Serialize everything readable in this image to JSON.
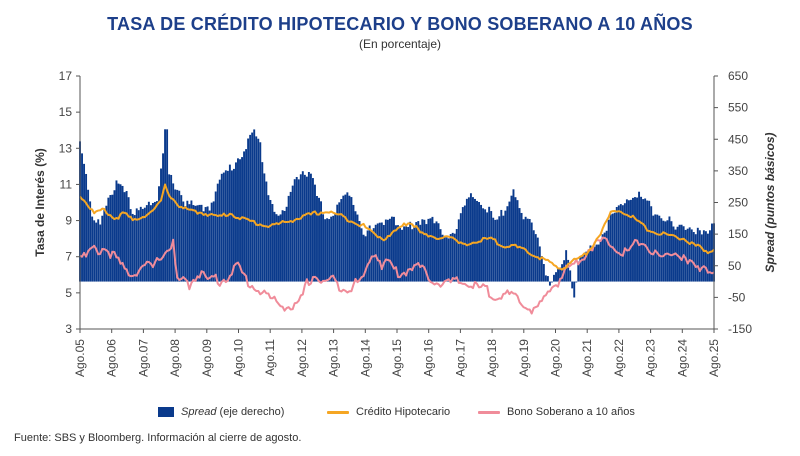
{
  "title": "TASA DE CRÉDITO HIPOTECARIO Y BONO SOBERANO A 10 AÑOS",
  "subtitle": "(En porcentaje)",
  "legend": {
    "spread_name": "Spread",
    "spread_suffix": " (eje derecho)",
    "credit": "Crédito Hipotecario",
    "bond": "Bono Soberano a 10 años"
  },
  "source": "Fuente: SBS y Bloomberg. Información al cierre de agosto.",
  "colors": {
    "spread": "#0a3a8c",
    "credit": "#f5a623",
    "bond": "#f08c9a",
    "axis": "#555555"
  },
  "chart_data": {
    "type": "bar+line",
    "ylabel_left": "Tasa de Interés (%)",
    "ylabel_right": "Spread (puntos básicos)",
    "ylim_left": [
      3,
      17
    ],
    "yticks_left": [
      "3",
      "5",
      "7",
      "9",
      "11",
      "13",
      "15",
      "17"
    ],
    "ylim_right": [
      -150,
      650
    ],
    "yticks_right": [
      "-150",
      "-50",
      "50",
      "150",
      "250",
      "350",
      "450",
      "550",
      "650"
    ],
    "x_categories": [
      "Ago.05",
      "Ago.06",
      "Ago.07",
      "Ago.08",
      "Ago.09",
      "Ago.10",
      "Ago.11",
      "Ago.12",
      "Ago.13",
      "Ago.14",
      "Ago.15",
      "Ago.16",
      "Ago.17",
      "Ago.18",
      "Ago.19",
      "Ago.20",
      "Ago.21",
      "Ago.22",
      "Ago.23",
      "Ago.24",
      "Ago.25"
    ],
    "series": [
      {
        "name": "Spread",
        "axis": "right",
        "type": "bar",
        "anchors": [
          [
            0,
            440
          ],
          [
            3,
            350
          ],
          [
            6,
            210
          ],
          [
            10,
            180
          ],
          [
            14,
            250
          ],
          [
            18,
            320
          ],
          [
            22,
            300
          ],
          [
            26,
            200
          ],
          [
            30,
            230
          ],
          [
            34,
            260
          ],
          [
            38,
            250
          ],
          [
            41,
            390
          ],
          [
            42,
            470
          ],
          [
            43,
            480
          ],
          [
            44,
            330
          ],
          [
            48,
            300
          ],
          [
            52,
            250
          ],
          [
            58,
            230
          ],
          [
            64,
            240
          ],
          [
            70,
            330
          ],
          [
            76,
            370
          ],
          [
            82,
            430
          ],
          [
            86,
            470
          ],
          [
            89,
            430
          ],
          [
            93,
            280
          ],
          [
            98,
            200
          ],
          [
            102,
            230
          ],
          [
            106,
            330
          ],
          [
            110,
            350
          ],
          [
            114,
            330
          ],
          [
            118,
            250
          ],
          [
            122,
            200
          ],
          [
            126,
            220
          ],
          [
            130,
            270
          ],
          [
            135,
            260
          ],
          [
            140,
            160
          ],
          [
            144,
            160
          ],
          [
            150,
            190
          ],
          [
            154,
            220
          ],
          [
            158,
            160
          ],
          [
            162,
            170
          ],
          [
            166,
            190
          ],
          [
            170,
            200
          ],
          [
            174,
            190
          ],
          [
            178,
            160
          ],
          [
            182,
            150
          ],
          [
            186,
            170
          ],
          [
            190,
            240
          ],
          [
            194,
            270
          ],
          [
            198,
            250
          ],
          [
            202,
            220
          ],
          [
            206,
            180
          ],
          [
            210,
            240
          ],
          [
            214,
            300
          ],
          [
            218,
            200
          ],
          [
            222,
            180
          ],
          [
            226,
            150
          ],
          [
            229,
            60
          ],
          [
            232,
            -20
          ],
          [
            235,
            20
          ],
          [
            238,
            50
          ],
          [
            240,
            100
          ],
          [
            242,
            40
          ],
          [
            244,
            -50
          ],
          [
            246,
            60
          ],
          [
            250,
            90
          ],
          [
            254,
            120
          ],
          [
            258,
            150
          ],
          [
            262,
            200
          ],
          [
            266,
            230
          ],
          [
            270,
            270
          ],
          [
            274,
            280
          ],
          [
            278,
            260
          ],
          [
            282,
            230
          ],
          [
            286,
            210
          ],
          [
            290,
            200
          ],
          [
            294,
            160
          ],
          [
            298,
            180
          ],
          [
            302,
            170
          ],
          [
            306,
            150
          ],
          [
            310,
            140
          ],
          [
            312,
            180
          ],
          [
            313,
            200
          ]
        ]
      },
      {
        "name": "Crédito Hipotecario",
        "axis": "left",
        "type": "line",
        "anchors": [
          [
            0,
            10.4
          ],
          [
            3,
            10.0
          ],
          [
            7,
            9.4
          ],
          [
            12,
            9.6
          ],
          [
            17,
            9.1
          ],
          [
            22,
            9.4
          ],
          [
            26,
            9.0
          ],
          [
            30,
            9.2
          ],
          [
            34,
            9.4
          ],
          [
            37,
            9.6
          ],
          [
            40,
            10.1
          ],
          [
            42,
            10.9
          ],
          [
            45,
            10.3
          ],
          [
            50,
            9.7
          ],
          [
            56,
            9.5
          ],
          [
            62,
            9.4
          ],
          [
            68,
            9.2
          ],
          [
            74,
            9.4
          ],
          [
            80,
            9.1
          ],
          [
            86,
            8.9
          ],
          [
            92,
            8.7
          ],
          [
            98,
            8.8
          ],
          [
            104,
            9.0
          ],
          [
            110,
            9.2
          ],
          [
            116,
            9.4
          ],
          [
            122,
            9.5
          ],
          [
            128,
            9.3
          ],
          [
            134,
            9.0
          ],
          [
            140,
            8.7
          ],
          [
            146,
            8.2
          ],
          [
            150,
            8.0
          ],
          [
            154,
            8.3
          ],
          [
            158,
            8.6
          ],
          [
            162,
            8.9
          ],
          [
            166,
            8.7
          ],
          [
            170,
            8.2
          ],
          [
            174,
            8.0
          ],
          [
            178,
            8.1
          ],
          [
            182,
            8.2
          ],
          [
            186,
            7.8
          ],
          [
            190,
            7.6
          ],
          [
            194,
            7.8
          ],
          [
            198,
            7.9
          ],
          [
            202,
            8.0
          ],
          [
            206,
            7.8
          ],
          [
            210,
            7.6
          ],
          [
            214,
            7.6
          ],
          [
            218,
            7.4
          ],
          [
            222,
            7.2
          ],
          [
            226,
            7.0
          ],
          [
            230,
            6.8
          ],
          [
            234,
            6.5
          ],
          [
            238,
            6.3
          ],
          [
            242,
            6.7
          ],
          [
            246,
            6.9
          ],
          [
            250,
            7.2
          ],
          [
            254,
            7.8
          ],
          [
            258,
            8.5
          ],
          [
            262,
            9.4
          ],
          [
            266,
            9.6
          ],
          [
            270,
            9.4
          ],
          [
            274,
            9.1
          ],
          [
            278,
            8.7
          ],
          [
            282,
            8.4
          ],
          [
            286,
            8.3
          ],
          [
            290,
            8.2
          ],
          [
            294,
            8.1
          ],
          [
            298,
            8.0
          ],
          [
            302,
            7.7
          ],
          [
            306,
            7.5
          ],
          [
            308,
            7.3
          ],
          [
            312,
            7.3
          ],
          [
            313,
            7.4
          ]
        ]
      },
      {
        "name": "Bono Soberano a 10 años",
        "axis": "left",
        "type": "line",
        "anchors": [
          [
            0,
            7.2
          ],
          [
            3,
            7.0
          ],
          [
            6,
            7.4
          ],
          [
            9,
            7.3
          ],
          [
            12,
            7.5
          ],
          [
            15,
            7.2
          ],
          [
            18,
            6.9
          ],
          [
            21,
            6.4
          ],
          [
            24,
            6.1
          ],
          [
            27,
            6.1
          ],
          [
            30,
            6.4
          ],
          [
            33,
            6.5
          ],
          [
            36,
            6.4
          ],
          [
            38,
            6.7
          ],
          [
            40,
            7.1
          ],
          [
            42,
            7.2
          ],
          [
            44,
            7.5
          ],
          [
            46,
            7.8
          ],
          [
            48,
            5.6
          ],
          [
            51,
            5.7
          ],
          [
            54,
            5.4
          ],
          [
            57,
            5.9
          ],
          [
            60,
            6.2
          ],
          [
            63,
            5.6
          ],
          [
            66,
            5.9
          ],
          [
            69,
            5.6
          ],
          [
            72,
            5.8
          ],
          [
            75,
            6.2
          ],
          [
            78,
            6.5
          ],
          [
            80,
            6.1
          ],
          [
            83,
            5.6
          ],
          [
            87,
            5.2
          ],
          [
            91,
            5.0
          ],
          [
            95,
            4.6
          ],
          [
            100,
            4.3
          ],
          [
            104,
            4.2
          ],
          [
            108,
            4.3
          ],
          [
            112,
            5.5
          ],
          [
            116,
            6.0
          ],
          [
            120,
            5.5
          ],
          [
            124,
            5.8
          ],
          [
            128,
            5.4
          ],
          [
            132,
            5.2
          ],
          [
            136,
            5.5
          ],
          [
            140,
            5.8
          ],
          [
            143,
            6.9
          ],
          [
            146,
            7.3
          ],
          [
            149,
            6.5
          ],
          [
            152,
            6.8
          ],
          [
            155,
            6.3
          ],
          [
            158,
            6.0
          ],
          [
            161,
            6.2
          ],
          [
            164,
            6.5
          ],
          [
            168,
            6.4
          ],
          [
            172,
            5.9
          ],
          [
            176,
            5.6
          ],
          [
            180,
            5.5
          ],
          [
            184,
            5.6
          ],
          [
            188,
            5.6
          ],
          [
            192,
            5.5
          ],
          [
            196,
            5.3
          ],
          [
            200,
            5.2
          ],
          [
            204,
            4.9
          ],
          [
            208,
            4.8
          ],
          [
            212,
            4.9
          ],
          [
            216,
            4.6
          ],
          [
            220,
            4.3
          ],
          [
            224,
            4.0
          ],
          [
            228,
            4.4
          ],
          [
            232,
            5.2
          ],
          [
            236,
            5.6
          ],
          [
            240,
            6.3
          ],
          [
            244,
            6.6
          ],
          [
            248,
            7.0
          ],
          [
            252,
            7.5
          ],
          [
            256,
            7.8
          ],
          [
            260,
            7.9
          ],
          [
            264,
            7.6
          ],
          [
            268,
            7.2
          ],
          [
            272,
            7.4
          ],
          [
            276,
            7.9
          ],
          [
            280,
            7.6
          ],
          [
            284,
            7.1
          ],
          [
            288,
            6.9
          ],
          [
            292,
            7.3
          ],
          [
            296,
            7.1
          ],
          [
            300,
            6.6
          ],
          [
            304,
            6.4
          ],
          [
            308,
            6.5
          ],
          [
            312,
            6.1
          ],
          [
            313,
            6.1
          ]
        ]
      }
    ]
  }
}
